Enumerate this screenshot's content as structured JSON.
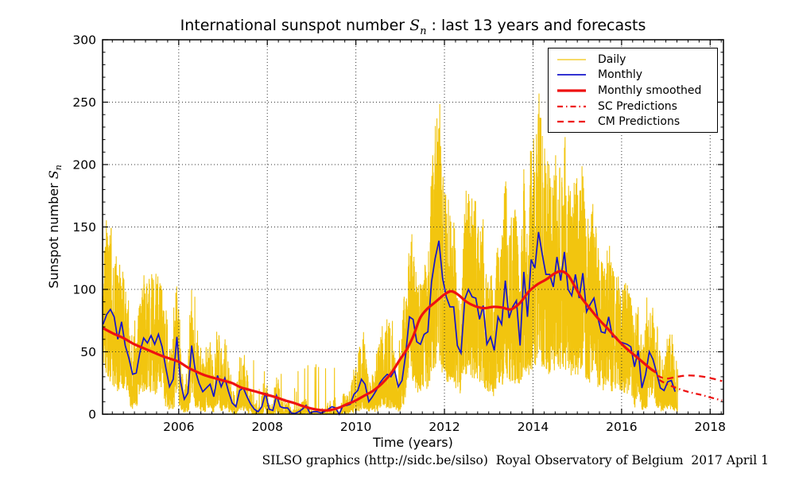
{
  "title": {
    "prefix": "International sunspot number ",
    "symbol": "S",
    "symbol_sub": "n",
    "suffix": " : last 13 years and forecasts"
  },
  "caption": "SILSO graphics (http://sidc.be/silso)  Royal Observatory of Belgium  2017 April 1",
  "colors": {
    "daily": "#F2C50F",
    "monthly": "#1414CC",
    "smoothed": "#EE1111",
    "predictions": "#EE1111",
    "grid": "#333333",
    "axis": "#000000",
    "background": "#FFFFFF"
  },
  "chart_data": {
    "type": "line",
    "title": "International sunspot number Sn : last 13 years and forecasts",
    "xlabel": "Time (years)",
    "ylabel": {
      "prefix": "Sunspot number ",
      "symbol": "S",
      "symbol_sub": "n"
    },
    "xlim": [
      2004.28,
      2018.3
    ],
    "ylim": [
      0,
      300
    ],
    "x_ticks": [
      2006,
      2008,
      2010,
      2012,
      2014,
      2016,
      2018
    ],
    "y_ticks": [
      0,
      50,
      100,
      150,
      200,
      250,
      300
    ],
    "x_minor_step": 0.25,
    "y_minor_step": 10,
    "grid": "dotted black on major ticks, both axes",
    "legend_position": "upper right",
    "legend_entries": [
      {
        "label": "Daily",
        "style": "solid",
        "color": "#F2C50F",
        "width": 1.2,
        "dash": ""
      },
      {
        "label": "Monthly",
        "style": "solid",
        "color": "#1414CC",
        "width": 1.7,
        "dash": ""
      },
      {
        "label": "Monthly smoothed",
        "style": "solid",
        "color": "#EE1111",
        "width": 3.2,
        "dash": ""
      },
      {
        "label": "SC Predictions",
        "style": "dash-dot",
        "color": "#EE1111",
        "width": 2.3,
        "dash": "7 4 1.5 4"
      },
      {
        "label": "CM Predictions",
        "style": "dashed",
        "color": "#EE1111",
        "width": 2.3,
        "dash": "8 5.5"
      }
    ],
    "series": {
      "monthly": {
        "name": "Monthly",
        "start_year": 2004,
        "start_month": 4,
        "step_years": 0.0833333,
        "values": [
          72,
          80,
          84,
          78,
          60,
          74,
          55,
          45,
          32,
          33,
          50,
          61,
          57,
          63,
          56,
          64,
          54,
          37,
          22,
          28,
          62,
          26,
          12,
          17,
          55,
          35,
          25,
          18,
          21,
          24,
          14,
          31,
          22,
          29,
          18,
          9,
          6,
          19,
          21,
          14,
          8,
          4,
          2,
          6,
          17,
          4,
          3,
          15,
          6,
          5,
          5,
          1,
          0.5,
          2,
          4,
          7,
          1,
          2,
          2,
          1,
          2,
          4,
          6,
          5,
          0,
          7,
          7,
          8,
          16,
          19,
          28,
          24,
          10,
          14,
          19,
          25,
          29,
          32,
          30,
          35,
          22,
          27,
          48,
          78,
          76,
          58,
          56,
          64,
          66,
          106,
          125,
          139,
          109,
          94,
          86,
          86,
          55,
          49,
          92,
          100,
          94,
          93,
          76,
          87,
          56,
          62,
          51,
          78,
          72,
          107,
          77,
          86,
          91,
          55,
          114,
          78,
          124,
          117,
          146,
          128,
          112,
          112,
          102,
          126,
          107,
          130,
          100,
          95,
          112,
          93,
          113,
          82,
          88,
          93,
          78,
          66,
          65,
          78,
          62,
          62,
          58,
          57,
          56,
          54,
          38,
          51,
          21,
          32,
          50,
          44,
          33,
          21,
          19,
          26,
          27,
          18
        ]
      },
      "monthly_smoothed": {
        "name": "Monthly smoothed",
        "points": [
          [
            2004.29,
            69
          ],
          [
            2004.5,
            65
          ],
          [
            2004.75,
            61
          ],
          [
            2005.0,
            56
          ],
          [
            2005.2,
            53
          ],
          [
            2005.4,
            50
          ],
          [
            2005.6,
            47
          ],
          [
            2005.8,
            44.5
          ],
          [
            2006.0,
            42
          ],
          [
            2006.2,
            37.5
          ],
          [
            2006.4,
            34
          ],
          [
            2006.6,
            31
          ],
          [
            2006.8,
            29
          ],
          [
            2007.0,
            27
          ],
          [
            2007.2,
            25
          ],
          [
            2007.4,
            21.5
          ],
          [
            2007.6,
            19.5
          ],
          [
            2007.8,
            17.5
          ],
          [
            2008.0,
            15.5
          ],
          [
            2008.2,
            13.5
          ],
          [
            2008.4,
            11
          ],
          [
            2008.6,
            9
          ],
          [
            2008.8,
            6.5
          ],
          [
            2009.0,
            4.5
          ],
          [
            2009.2,
            3.3
          ],
          [
            2009.4,
            3.2
          ],
          [
            2009.6,
            5
          ],
          [
            2009.8,
            8
          ],
          [
            2010.0,
            11
          ],
          [
            2010.2,
            15
          ],
          [
            2010.4,
            19
          ],
          [
            2010.6,
            25
          ],
          [
            2010.8,
            33
          ],
          [
            2011.0,
            44
          ],
          [
            2011.15,
            52
          ],
          [
            2011.3,
            63
          ],
          [
            2011.45,
            77
          ],
          [
            2011.6,
            84
          ],
          [
            2011.8,
            90
          ],
          [
            2012.0,
            96
          ],
          [
            2012.15,
            98.5
          ],
          [
            2012.3,
            96
          ],
          [
            2012.5,
            90
          ],
          [
            2012.7,
            86.5
          ],
          [
            2012.9,
            85
          ],
          [
            2013.1,
            86
          ],
          [
            2013.3,
            85.5
          ],
          [
            2013.5,
            84
          ],
          [
            2013.7,
            89
          ],
          [
            2013.9,
            98
          ],
          [
            2014.1,
            104
          ],
          [
            2014.3,
            108
          ],
          [
            2014.5,
            113
          ],
          [
            2014.65,
            114.5
          ],
          [
            2014.8,
            111
          ],
          [
            2014.95,
            102
          ],
          [
            2015.1,
            93
          ],
          [
            2015.3,
            84
          ],
          [
            2015.5,
            75.5
          ],
          [
            2015.7,
            68
          ],
          [
            2015.9,
            60
          ],
          [
            2016.1,
            53
          ],
          [
            2016.3,
            47
          ],
          [
            2016.5,
            41
          ],
          [
            2016.65,
            36.5
          ],
          [
            2016.78,
            33.5
          ]
        ]
      },
      "sc_predictions": {
        "name": "SC Predictions",
        "points": [
          [
            2016.85,
            27.5
          ],
          [
            2017.0,
            24.5
          ],
          [
            2017.2,
            21.5
          ],
          [
            2017.4,
            19
          ],
          [
            2017.6,
            17
          ],
          [
            2017.8,
            15.5
          ],
          [
            2018.0,
            13.5
          ],
          [
            2018.27,
            11
          ]
        ]
      },
      "cm_predictions": {
        "name": "CM Predictions",
        "points": [
          [
            2016.8,
            31
          ],
          [
            2017.0,
            28.5
          ],
          [
            2017.25,
            30
          ],
          [
            2017.5,
            31
          ],
          [
            2017.75,
            30.5
          ],
          [
            2018.0,
            29
          ],
          [
            2018.27,
            26.5
          ]
        ]
      },
      "daily": {
        "name": "Daily",
        "synthesized_from": "monthly",
        "seed": 20170401,
        "start": 2004.295,
        "end": 2017.27,
        "note": "daily values rendered as high-frequency noise around monthly means, peaks ~220"
      }
    }
  }
}
